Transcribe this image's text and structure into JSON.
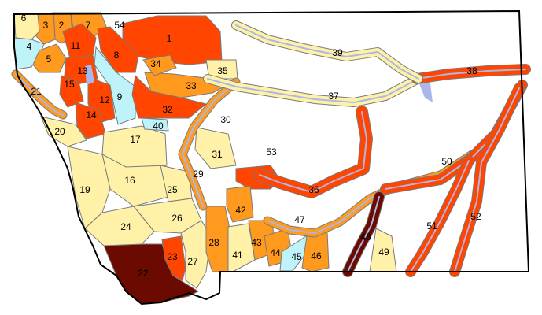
{
  "colors": {
    "yellow": "#FFF2A8",
    "orange": "#FF9A1E",
    "red": "#FF4500",
    "dark": "#6B0A00",
    "lightblue": "#BFF3FA",
    "white": "#FFFFFF",
    "water": "#A9B8E8",
    "border": "#7A7A7A"
  },
  "regions": [
    {
      "id": "1",
      "category": "red"
    },
    {
      "id": "2",
      "category": "orange"
    },
    {
      "id": "3",
      "category": "orange"
    },
    {
      "id": "4",
      "category": "lightblue"
    },
    {
      "id": "5",
      "category": "orange"
    },
    {
      "id": "6",
      "category": "yellow"
    },
    {
      "id": "7",
      "category": "orange"
    },
    {
      "id": "8",
      "category": "red"
    },
    {
      "id": "9",
      "category": "lightblue"
    },
    {
      "id": "11",
      "category": "red"
    },
    {
      "id": "12",
      "category": "red"
    },
    {
      "id": "13",
      "category": "red"
    },
    {
      "id": "14",
      "category": "red"
    },
    {
      "id": "15",
      "category": "red"
    },
    {
      "id": "16",
      "category": "yellow"
    },
    {
      "id": "17",
      "category": "yellow"
    },
    {
      "id": "19",
      "category": "yellow"
    },
    {
      "id": "20",
      "category": "yellow"
    },
    {
      "id": "21",
      "category": "orange"
    },
    {
      "id": "22",
      "category": "dark"
    },
    {
      "id": "23",
      "category": "red"
    },
    {
      "id": "24",
      "category": "yellow"
    },
    {
      "id": "25",
      "category": "yellow"
    },
    {
      "id": "26",
      "category": "yellow"
    },
    {
      "id": "27",
      "category": "yellow"
    },
    {
      "id": "28",
      "category": "orange"
    },
    {
      "id": "29",
      "category": "orange"
    },
    {
      "id": "30",
      "category": "white"
    },
    {
      "id": "31",
      "category": "yellow"
    },
    {
      "id": "32",
      "category": "red"
    },
    {
      "id": "33",
      "category": "orange"
    },
    {
      "id": "34",
      "category": "orange"
    },
    {
      "id": "35",
      "category": "yellow"
    },
    {
      "id": "36",
      "category": "red"
    },
    {
      "id": "37",
      "category": "yellow"
    },
    {
      "id": "38",
      "category": "red"
    },
    {
      "id": "39",
      "category": "yellow"
    },
    {
      "id": "40",
      "category": "lightblue"
    },
    {
      "id": "41",
      "category": "yellow"
    },
    {
      "id": "42",
      "category": "orange"
    },
    {
      "id": "43",
      "category": "orange"
    },
    {
      "id": "44",
      "category": "orange"
    },
    {
      "id": "45",
      "category": "lightblue"
    },
    {
      "id": "46",
      "category": "orange"
    },
    {
      "id": "47",
      "category": "white"
    },
    {
      "id": "48",
      "category": "dark"
    },
    {
      "id": "49",
      "category": "yellow"
    },
    {
      "id": "50",
      "category": "white"
    },
    {
      "id": "51",
      "category": "red"
    },
    {
      "id": "52",
      "category": "red"
    },
    {
      "id": "53",
      "category": "white"
    },
    {
      "id": "54",
      "category": "white"
    }
  ]
}
